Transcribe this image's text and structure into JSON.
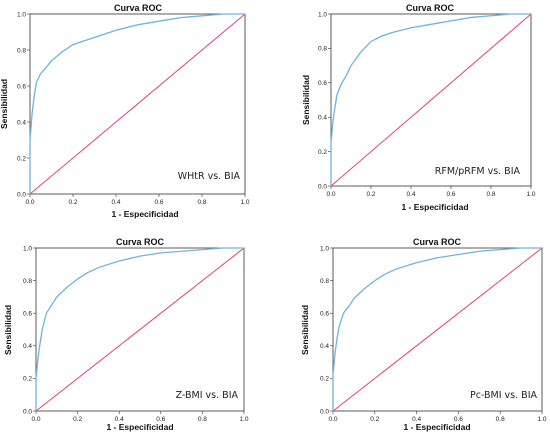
{
  "colors": {
    "roc": "#6fb3e0",
    "reference": "#e8417a",
    "frame": "#333333"
  },
  "chart_data": [
    {
      "type": "line",
      "title": "Curva ROC",
      "xlabel": "1 - Especificidad",
      "ylabel": "Sensibilidad",
      "annotation": "WHtR vs. BIA",
      "xlim": [
        0,
        1
      ],
      "ylim": [
        0,
        1
      ],
      "xticks": [
        "0.0",
        "0.2",
        "0.4",
        "0.6",
        "0.8",
        "1.0"
      ],
      "yticks": [
        "0.0",
        "0.2",
        "0.4",
        "0.6",
        "0.8",
        "1.0"
      ],
      "series": [
        {
          "x": [
            0,
            0.0,
            0.01,
            0.02,
            0.03,
            0.05,
            0.08,
            0.1,
            0.15,
            0.2,
            0.25,
            0.3,
            0.4,
            0.5,
            0.6,
            0.7,
            0.8,
            0.9,
            1.0
          ],
          "y": [
            0,
            0.3,
            0.45,
            0.55,
            0.62,
            0.67,
            0.71,
            0.74,
            0.79,
            0.83,
            0.85,
            0.87,
            0.91,
            0.94,
            0.96,
            0.98,
            0.99,
            1.0,
            1.0
          ]
        },
        {
          "x": [
            0,
            1
          ],
          "y": [
            0,
            1
          ]
        }
      ],
      "grid": false
    },
    {
      "type": "line",
      "title": "Curva ROC",
      "xlabel": "1 - Especificidad",
      "ylabel": "Sensibilidad",
      "annotation": "RFM/pRFM vs. BIA",
      "xlim": [
        0,
        1
      ],
      "ylim": [
        0,
        1
      ],
      "xticks": [
        "0.0",
        "0.2",
        "0.4",
        "0.6",
        "0.8",
        "1.0"
      ],
      "yticks": [
        "0.0",
        "0.2",
        "0.4",
        "0.6",
        "0.8",
        "1.0"
      ],
      "series": [
        {
          "x": [
            0,
            0.0,
            0.01,
            0.02,
            0.03,
            0.05,
            0.08,
            0.1,
            0.15,
            0.2,
            0.25,
            0.3,
            0.4,
            0.5,
            0.6,
            0.7,
            0.8,
            0.9,
            1.0
          ],
          "y": [
            0,
            0.25,
            0.38,
            0.46,
            0.53,
            0.59,
            0.65,
            0.7,
            0.78,
            0.84,
            0.87,
            0.89,
            0.92,
            0.94,
            0.96,
            0.98,
            0.99,
            1.0,
            1.0
          ]
        },
        {
          "x": [
            0,
            1
          ],
          "y": [
            0,
            1
          ]
        }
      ],
      "grid": false
    },
    {
      "type": "line",
      "title": "Curva ROC",
      "xlabel": "1 - Especificidad",
      "ylabel": "Sensibilidad",
      "annotation": "Z-BMI vs. BIA",
      "xlim": [
        0,
        1
      ],
      "ylim": [
        0,
        1
      ],
      "xticks": [
        "0.0",
        "0.2",
        "0.4",
        "0.6",
        "0.8",
        "1.0"
      ],
      "yticks": [
        "0.0",
        "0.2",
        "0.4",
        "0.6",
        "0.8",
        "1.0"
      ],
      "series": [
        {
          "x": [
            0,
            0.0,
            0.01,
            0.02,
            0.03,
            0.05,
            0.08,
            0.1,
            0.15,
            0.2,
            0.25,
            0.3,
            0.4,
            0.5,
            0.6,
            0.7,
            0.8,
            0.9,
            1.0
          ],
          "y": [
            0,
            0.2,
            0.33,
            0.42,
            0.5,
            0.6,
            0.66,
            0.7,
            0.76,
            0.81,
            0.85,
            0.88,
            0.92,
            0.95,
            0.97,
            0.98,
            0.99,
            1.0,
            1.0
          ]
        },
        {
          "x": [
            0,
            1
          ],
          "y": [
            0,
            1
          ]
        }
      ],
      "grid": false
    },
    {
      "type": "line",
      "title": "Curva ROC",
      "xlabel": "1 - Especificidad",
      "ylabel": "Sensibilidad",
      "annotation": "Pc-BMI vs. BIA",
      "xlim": [
        0,
        1
      ],
      "ylim": [
        0,
        1
      ],
      "xticks": [
        "0.0",
        "0.2",
        "0.4",
        "0.6",
        "0.8",
        "1.0"
      ],
      "yticks": [
        "0.0",
        "0.2",
        "0.4",
        "0.6",
        "0.8",
        "1.0"
      ],
      "series": [
        {
          "x": [
            0,
            0.0,
            0.01,
            0.02,
            0.03,
            0.05,
            0.08,
            0.1,
            0.15,
            0.2,
            0.25,
            0.3,
            0.4,
            0.5,
            0.6,
            0.7,
            0.8,
            0.9,
            1.0
          ],
          "y": [
            0,
            0.22,
            0.36,
            0.45,
            0.52,
            0.6,
            0.65,
            0.69,
            0.75,
            0.8,
            0.84,
            0.87,
            0.91,
            0.94,
            0.96,
            0.98,
            0.99,
            1.0,
            1.0
          ]
        },
        {
          "x": [
            0,
            1
          ],
          "y": [
            0,
            1
          ]
        }
      ],
      "grid": false
    }
  ]
}
